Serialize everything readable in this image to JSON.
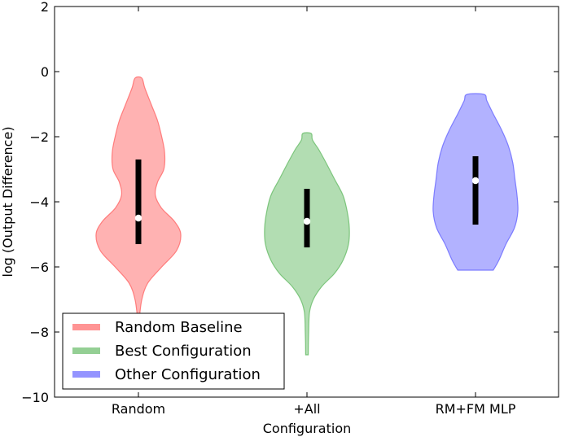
{
  "chart_data": {
    "type": "violin",
    "xlabel": "Configuration",
    "ylabel": "log (Output Difference)",
    "ylim": [
      -10,
      2
    ],
    "yticks": [
      "2",
      "0",
      "−2",
      "−4",
      "−6",
      "−8",
      "−10"
    ],
    "grid": false,
    "legend_position": "bottom-left",
    "categories": [
      "Random",
      "+All",
      "RM+FM MLP"
    ],
    "violins": [
      {
        "category": "Random",
        "legend": "Random Baseline",
        "color": "#ff6666",
        "min": -7.6,
        "max": -0.2,
        "median": -4.5,
        "q1": -5.3,
        "q3": -2.7,
        "density": [
          [
            -7.6,
            0.02
          ],
          [
            -7.0,
            0.08
          ],
          [
            -6.5,
            0.22
          ],
          [
            -6.0,
            0.55
          ],
          [
            -5.5,
            0.9
          ],
          [
            -5.0,
            1.0
          ],
          [
            -4.6,
            0.85
          ],
          [
            -4.2,
            0.55
          ],
          [
            -3.8,
            0.4
          ],
          [
            -3.4,
            0.45
          ],
          [
            -3.0,
            0.6
          ],
          [
            -2.5,
            0.62
          ],
          [
            -2.0,
            0.55
          ],
          [
            -1.5,
            0.45
          ],
          [
            -1.0,
            0.3
          ],
          [
            -0.5,
            0.15
          ],
          [
            -0.2,
            0.08
          ]
        ]
      },
      {
        "category": "+All",
        "legend": "Best Configuration",
        "color": "#66bb66",
        "min": -8.7,
        "max": -1.9,
        "median": -4.6,
        "q1": -5.4,
        "q3": -3.6,
        "density": [
          [
            -8.7,
            0.03
          ],
          [
            -8.0,
            0.04
          ],
          [
            -7.4,
            0.06
          ],
          [
            -7.0,
            0.15
          ],
          [
            -6.6,
            0.35
          ],
          [
            -6.2,
            0.65
          ],
          [
            -5.8,
            0.85
          ],
          [
            -5.3,
            0.98
          ],
          [
            -4.8,
            1.0
          ],
          [
            -4.3,
            0.95
          ],
          [
            -3.8,
            0.85
          ],
          [
            -3.3,
            0.65
          ],
          [
            -2.8,
            0.45
          ],
          [
            -2.4,
            0.28
          ],
          [
            -2.1,
            0.13
          ],
          [
            -1.9,
            0.1
          ]
        ]
      },
      {
        "category": "RM+FM MLP",
        "legend": "Other Configuration",
        "color": "#6666ff",
        "min": -6.1,
        "max": -0.7,
        "median": -3.35,
        "q1": -4.7,
        "q3": -2.6,
        "density": [
          [
            -6.1,
            0.42
          ],
          [
            -5.8,
            0.55
          ],
          [
            -5.3,
            0.72
          ],
          [
            -4.8,
            0.92
          ],
          [
            -4.3,
            1.0
          ],
          [
            -3.8,
            0.98
          ],
          [
            -3.3,
            0.93
          ],
          [
            -2.8,
            0.88
          ],
          [
            -2.3,
            0.78
          ],
          [
            -1.8,
            0.62
          ],
          [
            -1.3,
            0.42
          ],
          [
            -0.9,
            0.27
          ],
          [
            -0.7,
            0.2
          ]
        ]
      }
    ]
  }
}
